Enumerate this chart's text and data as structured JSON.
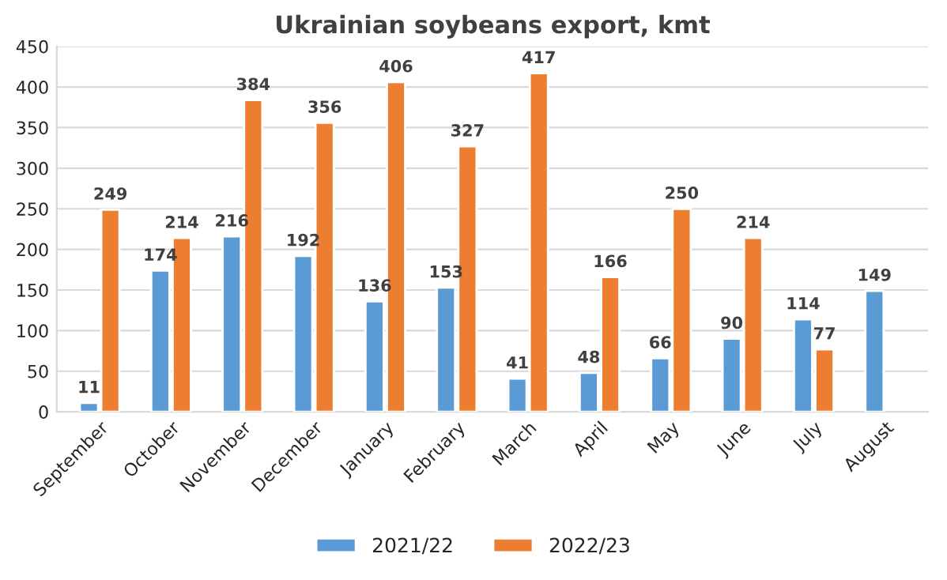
{
  "chart_data": {
    "type": "bar",
    "title": "Ukrainian soybeans export, kmt",
    "categories": [
      "September",
      "October",
      "November",
      "December",
      "January",
      "February",
      "March",
      "April",
      "May",
      "June",
      "July",
      "August"
    ],
    "series": [
      {
        "name": "2021/22",
        "color": "#5b9bd5",
        "values": [
          11,
          174,
          216,
          192,
          136,
          153,
          41,
          48,
          66,
          90,
          114,
          149
        ]
      },
      {
        "name": "2022/23",
        "color": "#ed7d31",
        "values": [
          249,
          214,
          384,
          356,
          406,
          327,
          417,
          166,
          250,
          214,
          77,
          null
        ]
      }
    ],
    "ylim": [
      0,
      450
    ],
    "yticks": [
      0,
      50,
      100,
      150,
      200,
      250,
      300,
      350,
      400,
      450
    ],
    "grid": "y",
    "legend": "bottom",
    "data_labels": true
  }
}
